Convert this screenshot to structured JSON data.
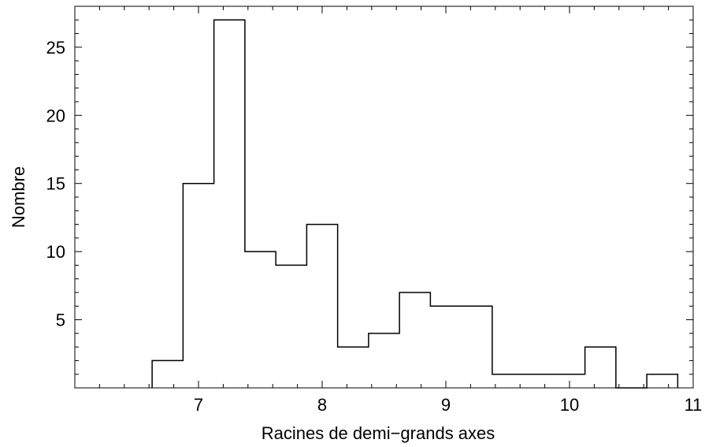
{
  "chart_data": {
    "type": "bar",
    "subtype": "histogram-step",
    "title": "",
    "xlabel": "Racines de demi−grands axes",
    "ylabel": "Nombre",
    "xlim": [
      6.0,
      11.0
    ],
    "ylim": [
      0,
      28
    ],
    "xticks": [
      7,
      8,
      9,
      10,
      11
    ],
    "yticks": [
      5,
      10,
      15,
      20,
      25
    ],
    "xticks_labels": [
      "7",
      "8",
      "9",
      "10",
      "11"
    ],
    "yticks_labels": [
      "5",
      "10",
      "15",
      "20",
      "25"
    ],
    "bin_width": 0.25,
    "bin_starts": [
      6.625,
      6.875,
      7.125,
      7.375,
      7.625,
      7.875,
      8.125,
      8.375,
      8.625,
      8.875,
      9.125,
      9.375,
      9.625,
      9.875,
      10.125,
      10.375,
      10.625
    ],
    "counts": [
      2,
      15,
      27,
      10,
      9,
      12,
      3,
      4,
      7,
      6,
      6,
      1,
      1,
      1,
      3,
      0,
      1
    ],
    "grid": false,
    "legend": "none",
    "line_color": "#000000"
  }
}
